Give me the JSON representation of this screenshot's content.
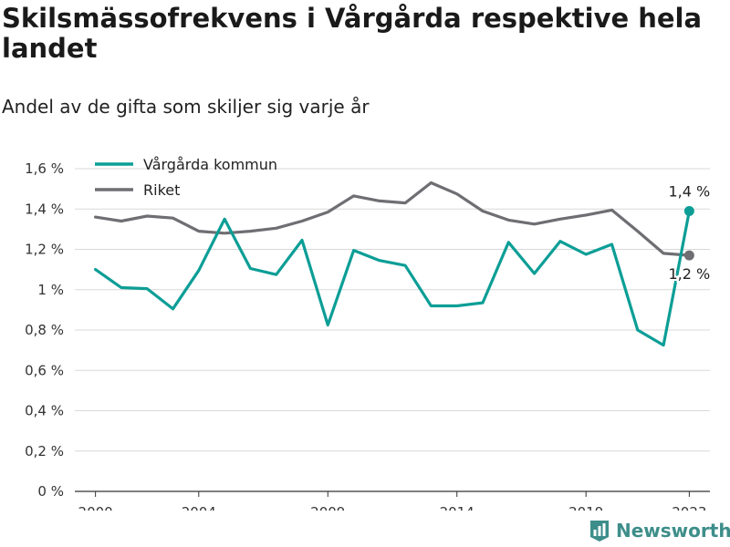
{
  "chart_data": {
    "type": "line",
    "title": "Skilsmässofrekvens i Vårgårda respektive hela landet",
    "subtitle": "Andel av de gifta som skiljer sig varje år",
    "xlabel": "",
    "ylabel": "",
    "ylim": [
      0,
      1.6
    ],
    "y_ticks": [
      "0 %",
      "0,2 %",
      "0,4 %",
      "0,6 %",
      "0,8 %",
      "1 %",
      "1,2 %",
      "1,4 %",
      "1,6 %"
    ],
    "y_tick_values": [
      0,
      0.2,
      0.4,
      0.6,
      0.8,
      1.0,
      1.2,
      1.4,
      1.6
    ],
    "x_ticks": [
      "2000",
      "2004",
      "2009",
      "2014",
      "2019",
      "2023"
    ],
    "x_tick_values": [
      2000,
      2004,
      2009,
      2014,
      2019,
      2023
    ],
    "xlim": [
      1999.2,
      2023.8
    ],
    "grid": true,
    "legend": "top-left",
    "x": [
      2000,
      2001,
      2002,
      2003,
      2004,
      2005,
      2006,
      2007,
      2008,
      2009,
      2010,
      2011,
      2012,
      2013,
      2014,
      2015,
      2016,
      2017,
      2018,
      2019,
      2020,
      2021,
      2022,
      2023
    ],
    "series": [
      {
        "name": "Vårgårda kommun",
        "color": "#0c9e96",
        "values": [
          1.1,
          1.01,
          1.005,
          0.905,
          1.095,
          1.35,
          1.105,
          1.075,
          1.245,
          0.825,
          1.195,
          1.145,
          1.12,
          0.92,
          0.92,
          0.935,
          1.235,
          1.08,
          1.24,
          1.175,
          1.225,
          0.8,
          0.725,
          1.39
        ],
        "end_label": "1,4 %"
      },
      {
        "name": "Riket",
        "color": "#6e6e73",
        "values": [
          1.36,
          1.34,
          1.365,
          1.355,
          1.29,
          1.28,
          1.29,
          1.305,
          1.34,
          1.385,
          1.465,
          1.44,
          1.43,
          1.53,
          1.475,
          1.39,
          1.345,
          1.325,
          1.35,
          1.37,
          1.395,
          1.29,
          1.18,
          1.17
        ],
        "end_label": "1,2 %"
      }
    ]
  },
  "brand": {
    "name": "Newsworthy",
    "icon": "bar-chart-logo-icon",
    "color": "#3d8e8a"
  }
}
